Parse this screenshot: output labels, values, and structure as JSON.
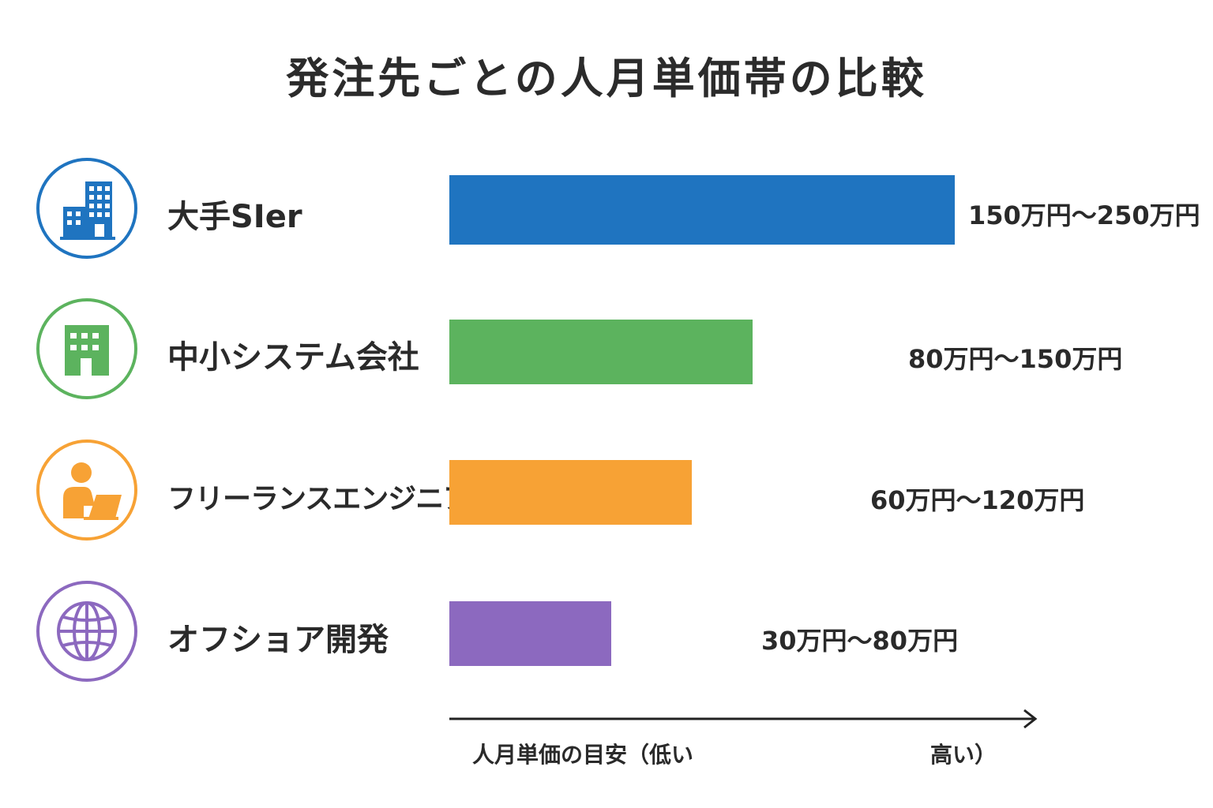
{
  "chart_data": {
    "type": "bar",
    "orientation": "horizontal",
    "title": "発注先ごとの人月単価帯の比較",
    "categories": [
      "大手SIer",
      "中小システム会社",
      "フリーランスエンジニア",
      "オフショア開発"
    ],
    "series": [
      {
        "values": [
          250,
          150,
          120,
          80
        ],
        "ranges": [
          [
            150,
            250
          ],
          [
            80,
            150
          ],
          [
            60,
            120
          ],
          [
            30,
            80
          ]
        ],
        "data_labels": [
          "150万円〜250万円",
          "80万円〜150万円",
          "60万円〜120万円",
          "30万円〜80万円"
        ]
      }
    ],
    "colors": [
      "#1f74c0",
      "#5cb35e",
      "#f7a235",
      "#8c69bf"
    ],
    "icons": [
      "office-building-icon",
      "small-building-icon",
      "freelancer-laptop-icon",
      "globe-icon"
    ],
    "xlabel_low": "人月単価の目安（低い",
    "xlabel_high": "高い）",
    "xlim": [
      0,
      297
    ],
    "grid": false,
    "legend": "none"
  }
}
